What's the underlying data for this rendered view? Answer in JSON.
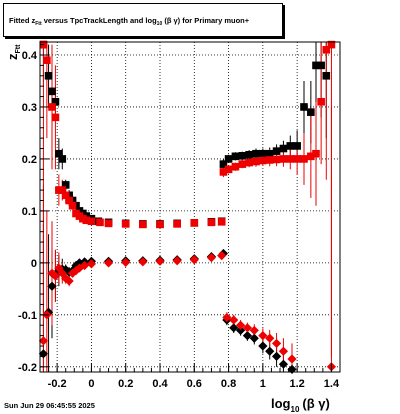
{
  "title": {
    "prefix": "Fitted  z",
    "sub1": "Ftt",
    "middle": "  versus TpcTrackLength and log",
    "sub2": "10",
    "suffix": " (β  γ) for Primary muon+"
  },
  "footer": {
    "date": "Sun Jun 29 06:45:55 2025"
  },
  "chart_data": {
    "type": "scatter",
    "xlabel": "log",
    "xlabel_sub": "10",
    "xlabel_tail": "(β γ)",
    "ylabel": "z",
    "ylabel_sub": "Ftt",
    "xlim": [
      -0.3,
      1.45
    ],
    "ylim": [
      -0.21,
      0.425
    ],
    "x_ticks": [
      {
        "value": -0.2,
        "label": "-0.2"
      },
      {
        "value": 0,
        "label": "0"
      },
      {
        "value": 0.2,
        "label": "0.2"
      },
      {
        "value": 0.4,
        "label": "0.4"
      },
      {
        "value": 0.6,
        "label": "0.6"
      },
      {
        "value": 0.8,
        "label": "0.8"
      },
      {
        "value": 1,
        "label": "1"
      },
      {
        "value": 1.2,
        "label": "1.2"
      },
      {
        "value": 1.4,
        "label": "1.4"
      }
    ],
    "y_ticks": [
      {
        "value": -0.2,
        "label": "-0.2"
      },
      {
        "value": -0.1,
        "label": "-0.1"
      },
      {
        "value": 0,
        "label": "0"
      },
      {
        "value": 0.1,
        "label": "0.1"
      },
      {
        "value": 0.2,
        "label": "0.2"
      },
      {
        "value": 0.3,
        "label": "0.3"
      },
      {
        "value": 0.4,
        "label": "0.4"
      }
    ],
    "grid": true,
    "series": [
      {
        "color": "#000000",
        "marker": "square",
        "points": [
          [
            -0.28,
            0.42,
            0.08
          ],
          [
            -0.25,
            0.36,
            0.06
          ],
          [
            -0.23,
            0.33,
            0.05
          ],
          [
            -0.21,
            0.31,
            0.03
          ],
          [
            -0.19,
            0.21,
            0.03
          ],
          [
            -0.17,
            0.2,
            0.02
          ],
          [
            -0.15,
            0.15,
            0.01
          ],
          [
            -0.13,
            0.13,
            0.01
          ],
          [
            -0.11,
            0.12,
            0.01
          ],
          [
            -0.09,
            0.11,
            0.005
          ],
          [
            -0.07,
            0.1,
            0.005
          ],
          [
            -0.05,
            0.095,
            0.004
          ],
          [
            -0.03,
            0.09,
            0.004
          ],
          [
            0.0,
            0.085,
            0.003
          ],
          [
            0.04,
            0.08,
            0.003
          ],
          [
            0.1,
            0.078,
            0.003
          ],
          [
            0.2,
            0.076,
            0.003
          ],
          [
            0.3,
            0.075,
            0.003
          ],
          [
            0.4,
            0.075,
            0.003
          ],
          [
            0.5,
            0.076,
            0.003
          ],
          [
            0.6,
            0.077,
            0.003
          ],
          [
            0.7,
            0.079,
            0.003
          ],
          [
            0.76,
            0.08,
            0.004
          ],
          [
            0.77,
            0.19,
            0.01
          ],
          [
            0.8,
            0.2,
            0.008
          ],
          [
            0.84,
            0.205,
            0.008
          ],
          [
            0.88,
            0.206,
            0.008
          ],
          [
            0.92,
            0.208,
            0.009
          ],
          [
            0.96,
            0.21,
            0.01
          ],
          [
            1.0,
            0.21,
            0.01
          ],
          [
            1.04,
            0.21,
            0.012
          ],
          [
            1.08,
            0.215,
            0.013
          ],
          [
            1.12,
            0.22,
            0.015
          ],
          [
            1.16,
            0.225,
            0.02
          ],
          [
            1.2,
            0.225,
            0.03
          ],
          [
            1.24,
            0.3,
            0.05
          ],
          [
            1.28,
            0.29,
            0.06
          ],
          [
            1.31,
            0.38,
            0.08
          ],
          [
            1.34,
            0.38,
            0.1
          ],
          [
            1.37,
            0.36,
            0.12
          ]
        ]
      },
      {
        "color": "#ee0000",
        "marker": "square",
        "points": [
          [
            -0.28,
            0.42,
            0.5
          ],
          [
            -0.26,
            0.39,
            0.15
          ],
          [
            -0.23,
            0.3,
            0.12
          ],
          [
            -0.21,
            0.28,
            0.1
          ],
          [
            -0.19,
            0.14,
            0.03
          ],
          [
            -0.17,
            0.14,
            0.02
          ],
          [
            -0.15,
            0.13,
            0.015
          ],
          [
            -0.13,
            0.12,
            0.01
          ],
          [
            -0.11,
            0.11,
            0.008
          ],
          [
            -0.09,
            0.095,
            0.006
          ],
          [
            -0.07,
            0.09,
            0.005
          ],
          [
            -0.05,
            0.085,
            0.004
          ],
          [
            -0.03,
            0.082,
            0.004
          ],
          [
            0.0,
            0.08,
            0.003
          ],
          [
            0.05,
            0.078,
            0.003
          ],
          [
            0.1,
            0.076,
            0.003
          ],
          [
            0.2,
            0.075,
            0.003
          ],
          [
            0.3,
            0.074,
            0.003
          ],
          [
            0.4,
            0.074,
            0.003
          ],
          [
            0.5,
            0.075,
            0.003
          ],
          [
            0.6,
            0.077,
            0.003
          ],
          [
            0.7,
            0.078,
            0.003
          ],
          [
            0.76,
            0.079,
            0.004
          ],
          [
            0.77,
            0.175,
            0.01
          ],
          [
            0.8,
            0.18,
            0.008
          ],
          [
            0.84,
            0.185,
            0.008
          ],
          [
            0.88,
            0.19,
            0.008
          ],
          [
            0.92,
            0.193,
            0.009
          ],
          [
            0.96,
            0.195,
            0.01
          ],
          [
            1.0,
            0.197,
            0.01
          ],
          [
            1.04,
            0.198,
            0.012
          ],
          [
            1.08,
            0.199,
            0.013
          ],
          [
            1.12,
            0.2,
            0.015
          ],
          [
            1.16,
            0.2,
            0.02
          ],
          [
            1.2,
            0.2,
            0.03
          ],
          [
            1.24,
            0.2,
            0.05
          ],
          [
            1.28,
            0.205,
            0.08
          ],
          [
            1.31,
            0.21,
            0.1
          ],
          [
            1.34,
            0.31,
            0.12
          ],
          [
            1.37,
            0.41,
            0.25
          ],
          [
            1.4,
            0.42,
            0.6
          ]
        ]
      },
      {
        "color": "#000000",
        "marker": "diamond",
        "points": [
          [
            -0.28,
            -0.175,
            0.25
          ],
          [
            -0.25,
            -0.095,
            0.15
          ],
          [
            -0.23,
            -0.045,
            0.1
          ],
          [
            -0.21,
            -0.025,
            0.05
          ],
          [
            -0.19,
            -0.015,
            0.03
          ],
          [
            -0.17,
            -0.012,
            0.02
          ],
          [
            -0.15,
            -0.013,
            0.01
          ],
          [
            -0.13,
            -0.018,
            0.01
          ],
          [
            -0.11,
            -0.015,
            0.008
          ],
          [
            -0.09,
            -0.005,
            0.006
          ],
          [
            -0.07,
            0.0,
            0.005
          ],
          [
            -0.04,
            0.002,
            0.004
          ],
          [
            0.0,
            0.003,
            0.003
          ],
          [
            0.1,
            0.003,
            0.003
          ],
          [
            0.2,
            0.004,
            0.003
          ],
          [
            0.3,
            0.004,
            0.003
          ],
          [
            0.4,
            0.005,
            0.003
          ],
          [
            0.5,
            0.006,
            0.003
          ],
          [
            0.6,
            0.008,
            0.003
          ],
          [
            0.7,
            0.012,
            0.004
          ],
          [
            0.77,
            0.018,
            0.005
          ],
          [
            0.79,
            -0.11,
            0.01
          ],
          [
            0.83,
            -0.125,
            0.01
          ],
          [
            0.87,
            -0.13,
            0.01
          ],
          [
            0.91,
            -0.14,
            0.01
          ],
          [
            0.95,
            -0.145,
            0.012
          ],
          [
            1.0,
            -0.16,
            0.014
          ],
          [
            1.04,
            -0.17,
            0.016
          ],
          [
            1.08,
            -0.18,
            0.02
          ],
          [
            1.12,
            -0.195,
            0.025
          ],
          [
            1.17,
            -0.205,
            0.03
          ]
        ]
      },
      {
        "color": "#ee0000",
        "marker": "diamond",
        "points": [
          [
            -0.28,
            -0.15,
            0.3
          ],
          [
            -0.26,
            -0.1,
            0.2
          ],
          [
            -0.23,
            -0.02,
            0.1
          ],
          [
            -0.21,
            -0.025,
            0.05
          ],
          [
            -0.19,
            -0.01,
            0.03
          ],
          [
            -0.17,
            -0.02,
            0.02
          ],
          [
            -0.15,
            -0.03,
            0.01
          ],
          [
            -0.13,
            -0.035,
            0.01
          ],
          [
            -0.11,
            -0.02,
            0.008
          ],
          [
            -0.09,
            -0.015,
            0.006
          ],
          [
            -0.07,
            -0.01,
            0.005
          ],
          [
            -0.04,
            -0.005,
            0.004
          ],
          [
            0.0,
            -0.002,
            0.003
          ],
          [
            0.1,
            0.0,
            0.003
          ],
          [
            0.2,
            0.001,
            0.003
          ],
          [
            0.3,
            0.002,
            0.003
          ],
          [
            0.4,
            0.003,
            0.003
          ],
          [
            0.5,
            0.004,
            0.003
          ],
          [
            0.6,
            0.006,
            0.003
          ],
          [
            0.7,
            0.01,
            0.004
          ],
          [
            0.76,
            0.014,
            0.005
          ],
          [
            0.79,
            -0.105,
            0.01
          ],
          [
            0.83,
            -0.11,
            0.01
          ],
          [
            0.87,
            -0.12,
            0.01
          ],
          [
            0.91,
            -0.125,
            0.01
          ],
          [
            0.95,
            -0.13,
            0.012
          ],
          [
            1.0,
            -0.14,
            0.014
          ],
          [
            1.04,
            -0.145,
            0.016
          ],
          [
            1.08,
            -0.155,
            0.02
          ],
          [
            1.12,
            -0.17,
            0.025
          ],
          [
            1.17,
            -0.185,
            0.03
          ],
          [
            1.4,
            -0.2,
            0.5
          ]
        ]
      }
    ]
  }
}
